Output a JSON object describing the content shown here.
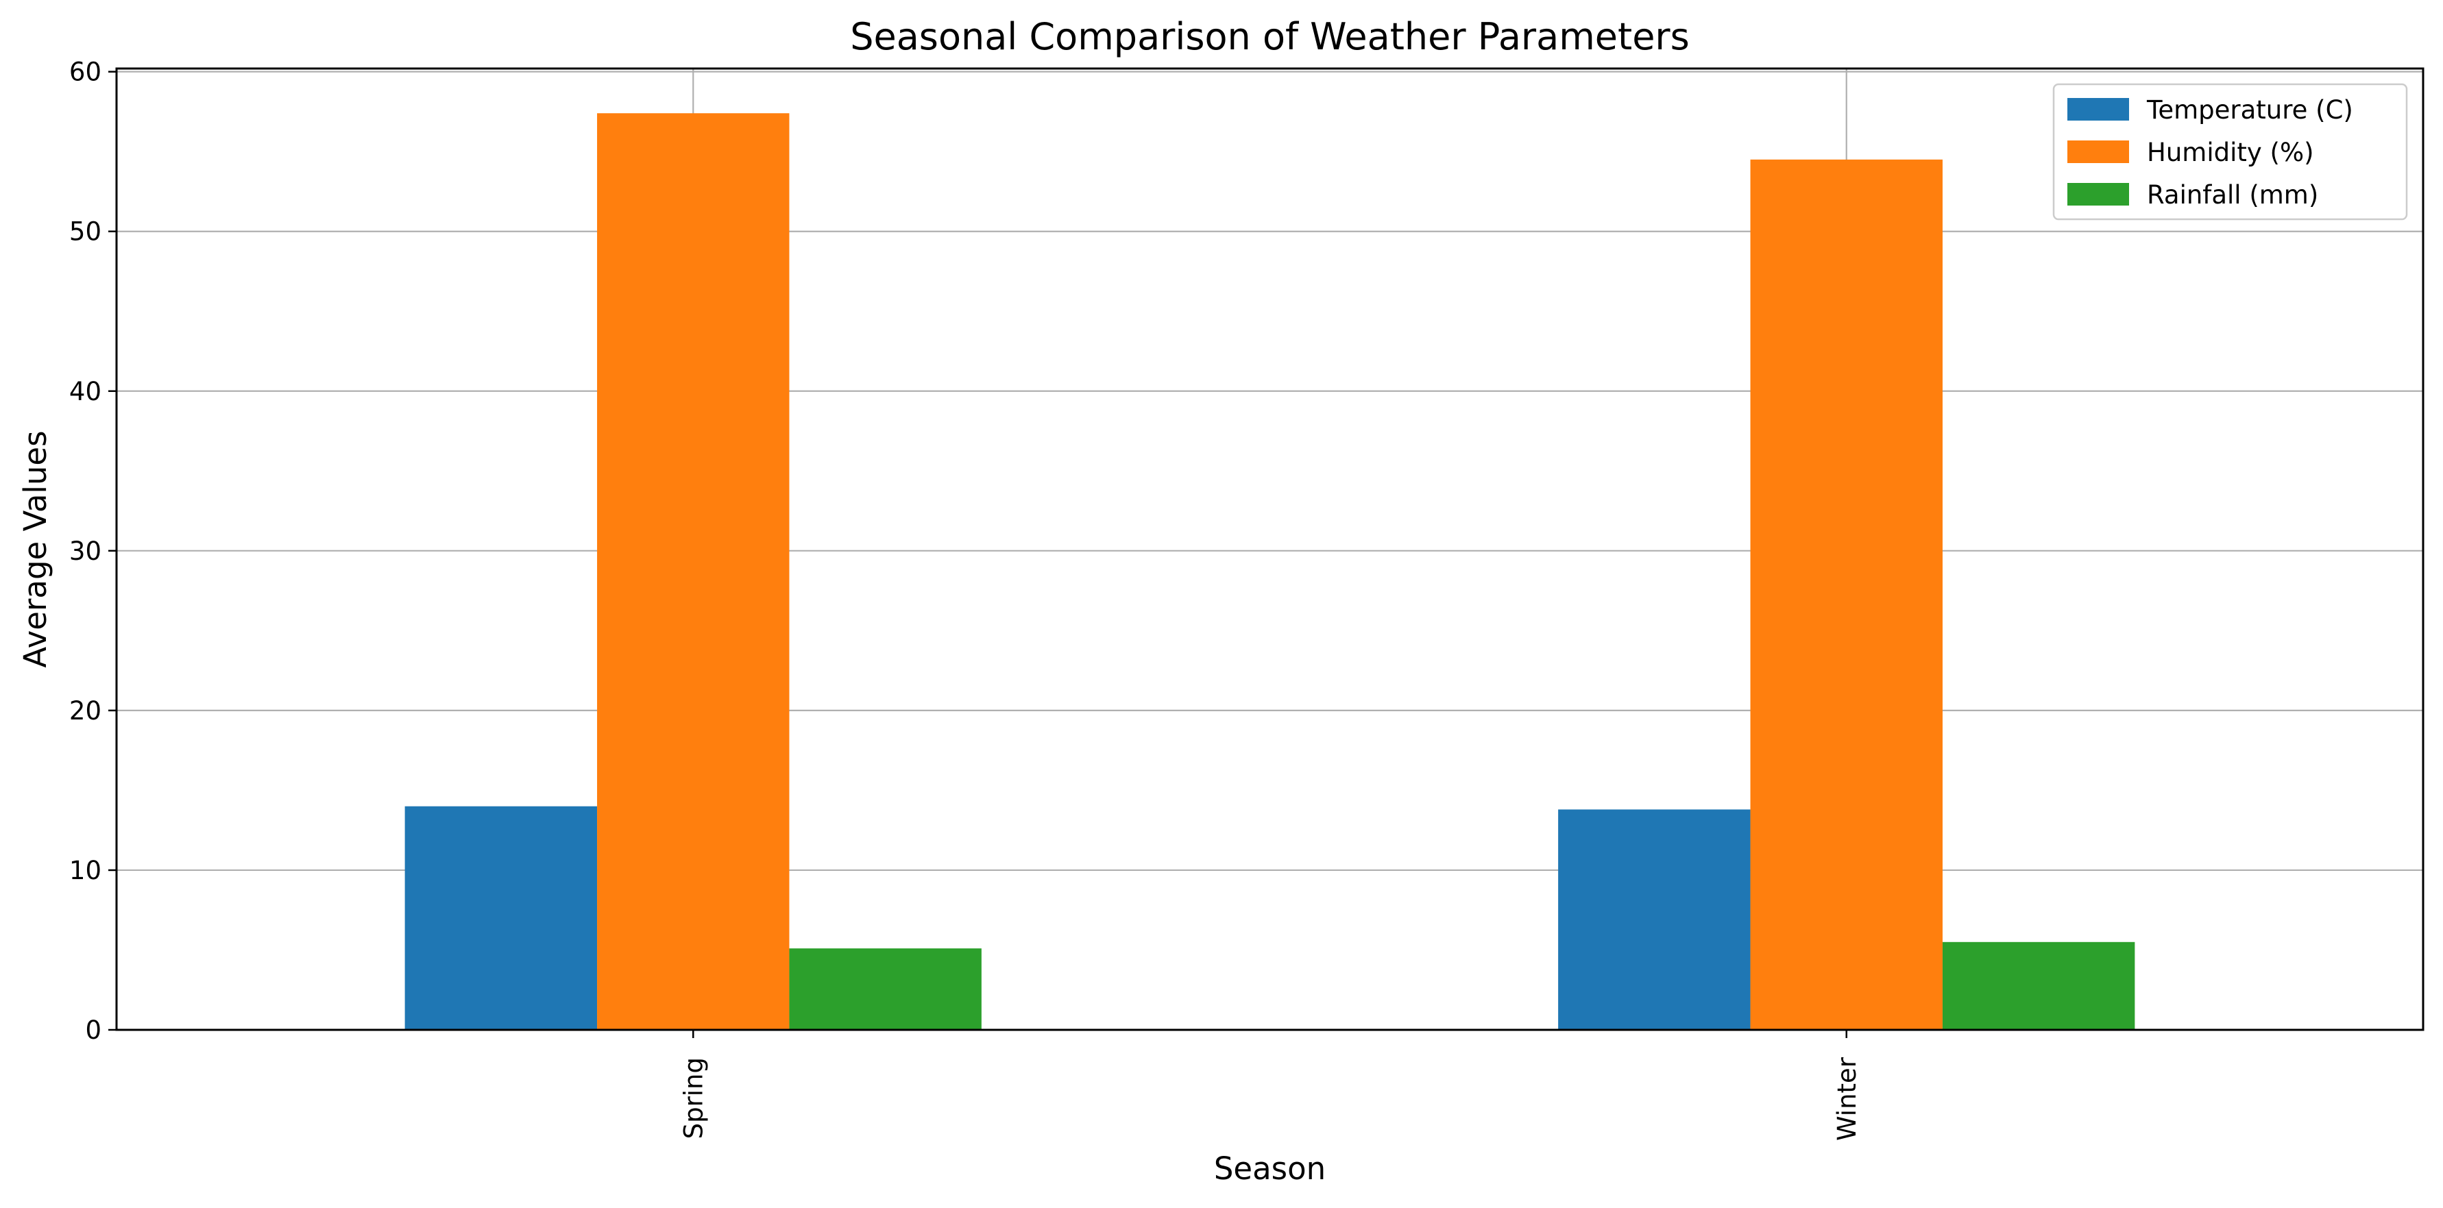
{
  "chart_data": {
    "type": "bar",
    "title": "Seasonal Comparison of Weather Parameters",
    "xlabel": "Season",
    "ylabel": "Average Values",
    "categories": [
      "Spring",
      "Winter"
    ],
    "series": [
      {
        "name": "Temperature (C)",
        "values": [
          14.0,
          13.8
        ],
        "color": "#1f77b4"
      },
      {
        "name": "Humidity (%)",
        "values": [
          57.4,
          54.5
        ],
        "color": "#ff7f0e"
      },
      {
        "name": "Rainfall (mm)",
        "values": [
          5.1,
          5.5
        ],
        "color": "#2ca02c"
      }
    ],
    "ylim": [
      0,
      60.2
    ],
    "yticks": [
      0,
      10,
      20,
      30,
      40,
      50,
      60
    ],
    "grid": true,
    "legend_position": "top-right",
    "xtick_rotation": "vertical"
  }
}
